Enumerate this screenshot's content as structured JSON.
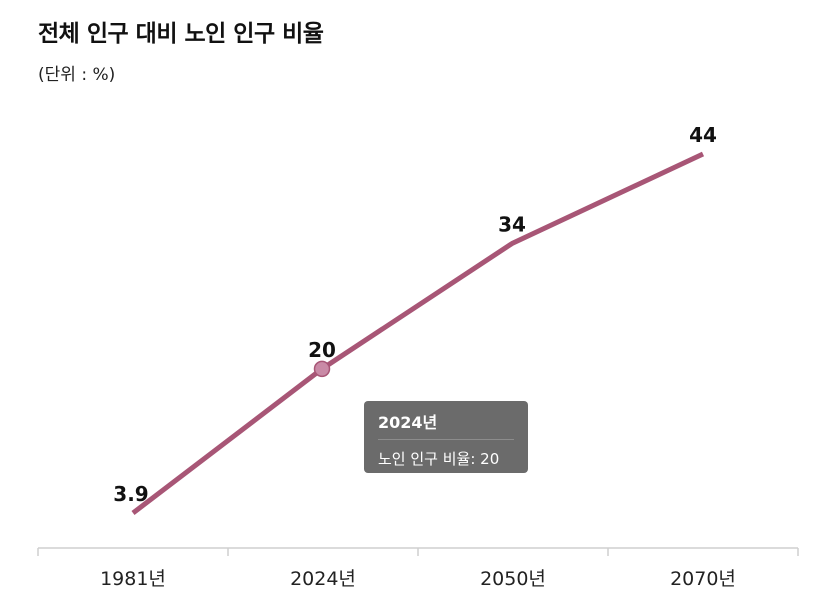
{
  "title": "전체 인구 대비 노인 인구 비율",
  "subtitle": "(단위 : %)",
  "tooltip": {
    "title": "2024년",
    "label": "노인 인구 비율",
    "value": "20"
  },
  "colors": {
    "line": "#a85676",
    "marker": "#c98aa6",
    "tooltip_bg": "#6b6b6b"
  },
  "chart_data": {
    "type": "line",
    "categories": [
      "1981년",
      "2024년",
      "2050년",
      "2070년"
    ],
    "series": [
      {
        "values": [
          3.9,
          20,
          34,
          44
        ],
        "labels": [
          "3.9",
          "20",
          "34",
          "44"
        ]
      }
    ],
    "ylim": [
      0,
      50
    ],
    "grid": false,
    "legend": "none",
    "highlighted_index": 1
  }
}
